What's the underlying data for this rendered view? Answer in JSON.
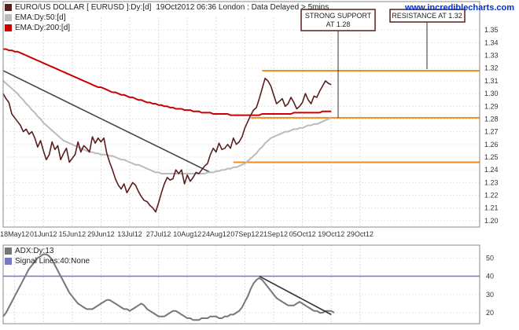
{
  "header": {
    "series_label": "EURO/US DOLLAR [ EURUSD ]:Dy:[d]",
    "timestamp": "19Oct2012 06:36 London : Data Delayed > 5mins",
    "brand": "www.incrediblecharts.com"
  },
  "legend": [
    {
      "label": "EURO/US DOLLAR [ EURUSD ]:Dy:[d]",
      "color": "#5a1e1e"
    },
    {
      "label": "EMA:Dy:50:[d]",
      "color": "#bbbbbb"
    },
    {
      "label": "EMA:Dy:200:[d]",
      "color": "#cc0000"
    }
  ],
  "indicator_legend": [
    {
      "label": "ADX:Dy:13",
      "color": "#777777"
    },
    {
      "label": "Signal Lines:40:None",
      "color": "#7777bb"
    }
  ],
  "annotations": {
    "support": [
      "STRONG SUPPORT",
      "AT 1.28"
    ],
    "resistance": "RESISTANCE AT 1.32"
  },
  "chart_data": [
    {
      "type": "line",
      "title": "EURO/US DOLLAR [ EURUSD ]:Dy:[d]",
      "x_tick_labels": [
        "18May12",
        "01Jun12",
        "15Jun12",
        "29Jun12",
        "13Jul12",
        "27Jul12",
        "10Aug12",
        "24Aug12",
        "07Sep12",
        "21Sep12",
        "05Oct12",
        "19Oct12",
        "29Oct12"
      ],
      "x_tick_trading_day": [
        4,
        14,
        24,
        34,
        44,
        54,
        64,
        74,
        84,
        94,
        104,
        114,
        124
      ],
      "y_ticks": [
        1.2,
        1.21,
        1.22,
        1.23,
        1.24,
        1.25,
        1.26,
        1.27,
        1.28,
        1.29,
        1.3,
        1.31,
        1.32,
        1.33,
        1.34,
        1.35
      ],
      "ylim": [
        1.195,
        1.36
      ],
      "series": [
        {
          "name": "EURO/US DOLLAR [ EURUSD ]:Dy:[d]",
          "color": "#5a1e1e",
          "values": [
            1.3,
            1.296,
            1.293,
            1.284,
            1.281,
            1.278,
            1.275,
            1.27,
            1.272,
            1.268,
            1.27,
            1.265,
            1.258,
            1.263,
            1.255,
            1.248,
            1.252,
            1.262,
            1.256,
            1.259,
            1.248,
            1.253,
            1.257,
            1.246,
            1.249,
            1.252,
            1.262,
            1.254,
            1.259,
            1.257,
            1.254,
            1.266,
            1.261,
            1.265,
            1.262,
            1.265,
            1.253,
            1.246,
            1.24,
            1.233,
            1.228,
            1.225,
            1.229,
            1.222,
            1.226,
            1.23,
            1.228,
            1.223,
            1.219,
            1.216,
            1.215,
            1.212,
            1.21,
            1.207,
            1.214,
            1.222,
            1.229,
            1.234,
            1.232,
            1.233,
            1.24,
            1.237,
            1.24,
            1.229,
            1.236,
            1.231,
            1.234,
            1.238,
            1.237,
            1.24,
            1.243,
            1.245,
            1.252,
            1.257,
            1.254,
            1.261,
            1.256,
            1.257,
            1.26,
            1.257,
            1.265,
            1.26,
            1.262,
            1.266,
            1.273,
            1.278,
            1.283,
            1.287,
            1.289,
            1.296,
            1.304,
            1.312,
            1.31,
            1.306,
            1.299,
            1.292,
            1.294,
            1.296,
            1.29,
            1.292,
            1.297,
            1.293,
            1.288,
            1.29,
            1.293,
            1.3,
            1.295,
            1.292,
            1.298,
            1.297,
            1.302,
            1.306,
            1.31,
            1.308,
            1.307
          ]
        },
        {
          "name": "EMA:Dy:50:[d]",
          "color": "#bbbbbb",
          "values": [
            1.31,
            1.308,
            1.306,
            1.304,
            1.302,
            1.3,
            1.297,
            1.295,
            1.292,
            1.29,
            1.287,
            1.285,
            1.282,
            1.28,
            1.277,
            1.275,
            1.273,
            1.271,
            1.269,
            1.267,
            1.265,
            1.263,
            1.262,
            1.261,
            1.26,
            1.259,
            1.258,
            1.257,
            1.256,
            1.255,
            1.254,
            1.254,
            1.253,
            1.253,
            1.252,
            1.252,
            1.252,
            1.251,
            1.251,
            1.25,
            1.249,
            1.248,
            1.248,
            1.247,
            1.246,
            1.245,
            1.244,
            1.244,
            1.243,
            1.242,
            1.241,
            1.24,
            1.239,
            1.238,
            1.238,
            1.237,
            1.237,
            1.237,
            1.237,
            1.237,
            1.237,
            1.237,
            1.237,
            1.237,
            1.237,
            1.237,
            1.237,
            1.237,
            1.237,
            1.237,
            1.237,
            1.238,
            1.238,
            1.238,
            1.239,
            1.239,
            1.24,
            1.24,
            1.241,
            1.241,
            1.242,
            1.242,
            1.243,
            1.244,
            1.245,
            1.247,
            1.249,
            1.251,
            1.253,
            1.256,
            1.258,
            1.261,
            1.263,
            1.265,
            1.266,
            1.267,
            1.268,
            1.269,
            1.27,
            1.27,
            1.271,
            1.272,
            1.272,
            1.273,
            1.273,
            1.274,
            1.275,
            1.275,
            1.276,
            1.276,
            1.277,
            1.278,
            1.279,
            1.28,
            1.281
          ]
        },
        {
          "name": "EMA:Dy:200:[d]",
          "color": "#cc0000",
          "values": [
            1.335,
            1.335,
            1.334,
            1.334,
            1.333,
            1.333,
            1.332,
            1.331,
            1.33,
            1.329,
            1.328,
            1.327,
            1.326,
            1.325,
            1.324,
            1.323,
            1.322,
            1.321,
            1.32,
            1.319,
            1.318,
            1.317,
            1.316,
            1.315,
            1.314,
            1.313,
            1.312,
            1.311,
            1.31,
            1.309,
            1.308,
            1.307,
            1.306,
            1.305,
            1.305,
            1.304,
            1.303,
            1.302,
            1.301,
            1.301,
            1.3,
            1.299,
            1.299,
            1.298,
            1.297,
            1.297,
            1.296,
            1.295,
            1.295,
            1.294,
            1.293,
            1.293,
            1.292,
            1.292,
            1.291,
            1.291,
            1.29,
            1.29,
            1.289,
            1.289,
            1.288,
            1.288,
            1.288,
            1.287,
            1.287,
            1.287,
            1.286,
            1.286,
            1.286,
            1.285,
            1.285,
            1.285,
            1.285,
            1.284,
            1.284,
            1.284,
            1.284,
            1.284,
            1.284,
            1.283,
            1.283,
            1.283,
            1.283,
            1.283,
            1.283,
            1.283,
            1.283,
            1.283,
            1.283,
            1.283,
            1.284,
            1.284,
            1.284,
            1.284,
            1.284,
            1.284,
            1.284,
            1.284,
            1.284,
            1.284,
            1.284,
            1.285,
            1.285,
            1.285,
            1.285,
            1.285,
            1.285,
            1.285,
            1.285,
            1.285,
            1.285,
            1.286,
            1.286,
            1.286,
            1.286
          ]
        }
      ],
      "trendline": {
        "color": "#444444",
        "from": [
          0,
          1.318
        ],
        "to": [
          72,
          1.238
        ]
      },
      "horizontal_lines": [
        {
          "value": 1.318,
          "color": "#f28c1e",
          "from_day": 90,
          "label": "RESISTANCE AT 1.32"
        },
        {
          "value": 1.281,
          "color": "#f28c1e",
          "from_day": 86,
          "label": "STRONG SUPPORT AT 1.28"
        },
        {
          "value": 1.246,
          "color": "#f28c1e",
          "from_day": 80
        }
      ]
    },
    {
      "type": "line",
      "title": "ADX:Dy:13",
      "y_ticks": [
        20,
        30,
        40,
        50
      ],
      "ylim": [
        14,
        57
      ],
      "series": [
        {
          "name": "ADX:Dy:13",
          "color": "#777777",
          "values": [
            18,
            20,
            23,
            26,
            29,
            32,
            35,
            38,
            41,
            44,
            46,
            48,
            50,
            51,
            52,
            52,
            51,
            49,
            46,
            43,
            40,
            37,
            34,
            31,
            29,
            27,
            25,
            24,
            23,
            22,
            22,
            22,
            23,
            24,
            25,
            26,
            27,
            27,
            26,
            25,
            24,
            23,
            22,
            22,
            21,
            22,
            23,
            24,
            25,
            24,
            22,
            21,
            20,
            19,
            18,
            18,
            18,
            19,
            20,
            21,
            21,
            20,
            19,
            18,
            17,
            17,
            16,
            16,
            16,
            17,
            17,
            17,
            18,
            18,
            18,
            17,
            17,
            18,
            18,
            19,
            19,
            20,
            21,
            23,
            26,
            29,
            33,
            36,
            38,
            39,
            38,
            36,
            34,
            32,
            30,
            28,
            27,
            26,
            25,
            24,
            24,
            24,
            25,
            26,
            25,
            24,
            23,
            22,
            21,
            21,
            20,
            20,
            21,
            21,
            21,
            20
          ]
        },
        {
          "name": "Signal Lines:40:None",
          "color": "#7777bb",
          "values": [
            40
          ]
        }
      ],
      "trendline": {
        "color": "#333333",
        "from": [
          89,
          40
        ],
        "to": [
          114,
          19
        ]
      }
    }
  ]
}
